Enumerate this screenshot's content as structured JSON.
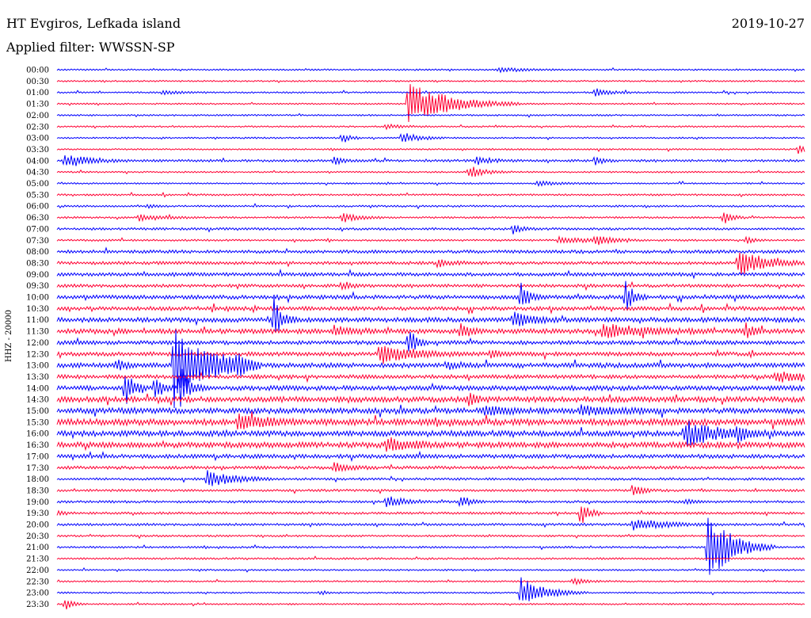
{
  "header": {
    "station": "HT Evgiros, Lefkada island",
    "date": "2019-10-27",
    "filter": "Applied filter: WWSSN-SP"
  },
  "colors": {
    "even": "#0000ff",
    "odd": "#ff0033"
  },
  "chart_data": {
    "type": "seismogram",
    "ylabel": "HHZ - 20000",
    "rows": [
      "00:00",
      "00:30",
      "01:00",
      "01:30",
      "02:00",
      "02:30",
      "03:00",
      "03:30",
      "04:00",
      "04:30",
      "05:00",
      "05:30",
      "06:00",
      "06:30",
      "07:00",
      "07:30",
      "08:00",
      "08:30",
      "09:00",
      "09:30",
      "10:00",
      "10:30",
      "11:00",
      "11:30",
      "12:00",
      "12:30",
      "13:00",
      "13:30",
      "14:00",
      "14:30",
      "15:00",
      "15:30",
      "16:00",
      "16:30",
      "17:00",
      "17:30",
      "18:00",
      "18:30",
      "19:00",
      "19:30",
      "20:00",
      "20:30",
      "21:00",
      "21:30",
      "22:00",
      "22:30",
      "23:00",
      "23:30"
    ],
    "noise": [
      1,
      1,
      1,
      1,
      1,
      1,
      1,
      1,
      1.5,
      1,
      1,
      1.2,
      1.2,
      1.2,
      1.5,
      1.2,
      2,
      2,
      2.2,
      2,
      2.5,
      2.5,
      3,
      3,
      2.5,
      2.5,
      3,
      2.5,
      3,
      3.5,
      3.5,
      4,
      3.5,
      3.5,
      2.5,
      2,
      1.5,
      1.5,
      1.5,
      1.5,
      1.5,
      1.2,
      1.2,
      1.2,
      1,
      1,
      1,
      1
    ],
    "events": [
      {
        "row": 0,
        "t": 0.59,
        "amp": 3,
        "dur": 0.03
      },
      {
        "row": 2,
        "t": 0.14,
        "amp": 3,
        "dur": 0.02
      },
      {
        "row": 2,
        "t": 0.72,
        "amp": 5,
        "dur": 0.02
      },
      {
        "row": 3,
        "t": 0.47,
        "amp": 28,
        "dur": 0.05
      },
      {
        "row": 5,
        "t": 0.44,
        "amp": 3,
        "dur": 0.02
      },
      {
        "row": 6,
        "t": 0.38,
        "amp": 8,
        "dur": 0.01
      },
      {
        "row": 6,
        "t": 0.46,
        "amp": 8,
        "dur": 0.02
      },
      {
        "row": 7,
        "t": 0.99,
        "amp": 7,
        "dur": 0.01
      },
      {
        "row": 8,
        "t": 0.01,
        "amp": 9,
        "dur": 0.03
      },
      {
        "row": 8,
        "t": 0.37,
        "amp": 6,
        "dur": 0.01
      },
      {
        "row": 8,
        "t": 0.56,
        "amp": 5,
        "dur": 0.02
      },
      {
        "row": 8,
        "t": 0.72,
        "amp": 5,
        "dur": 0.01
      },
      {
        "row": 9,
        "t": 0.55,
        "amp": 9,
        "dur": 0.02
      },
      {
        "row": 10,
        "t": 0.64,
        "amp": 3,
        "dur": 0.03
      },
      {
        "row": 12,
        "t": 0.12,
        "amp": 3,
        "dur": 0.01
      },
      {
        "row": 13,
        "t": 0.11,
        "amp": 4,
        "dur": 0.03
      },
      {
        "row": 13,
        "t": 0.38,
        "amp": 7,
        "dur": 0.02
      },
      {
        "row": 13,
        "t": 0.89,
        "amp": 11,
        "dur": 0.01
      },
      {
        "row": 14,
        "t": 0.61,
        "amp": 6,
        "dur": 0.01
      },
      {
        "row": 15,
        "t": 0.67,
        "amp": 5,
        "dur": 0.03
      },
      {
        "row": 15,
        "t": 0.72,
        "amp": 6,
        "dur": 0.02
      },
      {
        "row": 15,
        "t": 0.92,
        "amp": 6,
        "dur": 0.01
      },
      {
        "row": 17,
        "t": 0.91,
        "amp": 20,
        "dur": 0.03
      },
      {
        "row": 17,
        "t": 0.51,
        "amp": 4,
        "dur": 0.02
      },
      {
        "row": 19,
        "t": 0.38,
        "amp": 5,
        "dur": 0.01
      },
      {
        "row": 20,
        "t": 0.62,
        "amp": 20,
        "dur": 0.01
      },
      {
        "row": 20,
        "t": 0.76,
        "amp": 22,
        "dur": 0.01
      },
      {
        "row": 22,
        "t": 0.29,
        "amp": 28,
        "dur": 0.01
      },
      {
        "row": 22,
        "t": 0.61,
        "amp": 11,
        "dur": 0.02
      },
      {
        "row": 23,
        "t": 0.37,
        "amp": 7,
        "dur": 0.02
      },
      {
        "row": 23,
        "t": 0.54,
        "amp": 11,
        "dur": 0.01
      },
      {
        "row": 23,
        "t": 0.73,
        "amp": 9,
        "dur": 0.05
      },
      {
        "row": 23,
        "t": 0.92,
        "amp": 11,
        "dur": 0.01
      },
      {
        "row": 24,
        "t": 0.47,
        "amp": 18,
        "dur": 0.01
      },
      {
        "row": 25,
        "t": 0.43,
        "amp": 14,
        "dur": 0.04
      },
      {
        "row": 25,
        "t": 0.58,
        "amp": 5,
        "dur": 0.01
      },
      {
        "row": 26,
        "t": 0.08,
        "amp": 8,
        "dur": 0.01
      },
      {
        "row": 26,
        "t": 0.155,
        "amp": 55,
        "dur": 0.04
      },
      {
        "row": 26,
        "t": 0.2,
        "amp": 7,
        "dur": 0.02
      },
      {
        "row": 26,
        "t": 0.24,
        "amp": 14,
        "dur": 0.01
      },
      {
        "row": 26,
        "t": 0.52,
        "amp": 4,
        "dur": 0.02
      },
      {
        "row": 27,
        "t": 0.96,
        "amp": 7,
        "dur": 0.03
      },
      {
        "row": 28,
        "t": 0.09,
        "amp": 28,
        "dur": 0.01
      },
      {
        "row": 28,
        "t": 0.13,
        "amp": 18,
        "dur": 0.01
      },
      {
        "row": 28,
        "t": 0.165,
        "amp": 30,
        "dur": 0.01
      },
      {
        "row": 29,
        "t": 0.55,
        "amp": 9,
        "dur": 0.01
      },
      {
        "row": 30,
        "t": 0.57,
        "amp": 5,
        "dur": 0.03
      },
      {
        "row": 30,
        "t": 0.7,
        "amp": 6,
        "dur": 0.04
      },
      {
        "row": 31,
        "t": 0.24,
        "amp": 12,
        "dur": 0.03
      },
      {
        "row": 32,
        "t": 0.84,
        "amp": 16,
        "dur": 0.04
      },
      {
        "row": 32,
        "t": 0.91,
        "amp": 10,
        "dur": 0.01
      },
      {
        "row": 33,
        "t": 0.44,
        "amp": 9,
        "dur": 0.03
      },
      {
        "row": 35,
        "t": 0.37,
        "amp": 6,
        "dur": 0.02
      },
      {
        "row": 36,
        "t": 0.2,
        "amp": 14,
        "dur": 0.03
      },
      {
        "row": 37,
        "t": 0.77,
        "amp": 11,
        "dur": 0.01
      },
      {
        "row": 38,
        "t": 0.44,
        "amp": 9,
        "dur": 0.02
      },
      {
        "row": 38,
        "t": 0.54,
        "amp": 9,
        "dur": 0.01
      },
      {
        "row": 38,
        "t": 0.84,
        "amp": 4,
        "dur": 0.01
      },
      {
        "row": 39,
        "t": 0.7,
        "amp": 20,
        "dur": 0.01
      },
      {
        "row": 39,
        "t": 0.0,
        "amp": 3,
        "dur": 0.01
      },
      {
        "row": 40,
        "t": 0.77,
        "amp": 8,
        "dur": 0.04
      },
      {
        "row": 42,
        "t": 0.87,
        "amp": 48,
        "dur": 0.03
      },
      {
        "row": 45,
        "t": 0.69,
        "amp": 4,
        "dur": 0.02
      },
      {
        "row": 46,
        "t": 0.62,
        "amp": 20,
        "dur": 0.03
      },
      {
        "row": 46,
        "t": 0.35,
        "amp": 3,
        "dur": 0.01
      },
      {
        "row": 47,
        "t": 0.01,
        "amp": 8,
        "dur": 0.01
      }
    ]
  }
}
